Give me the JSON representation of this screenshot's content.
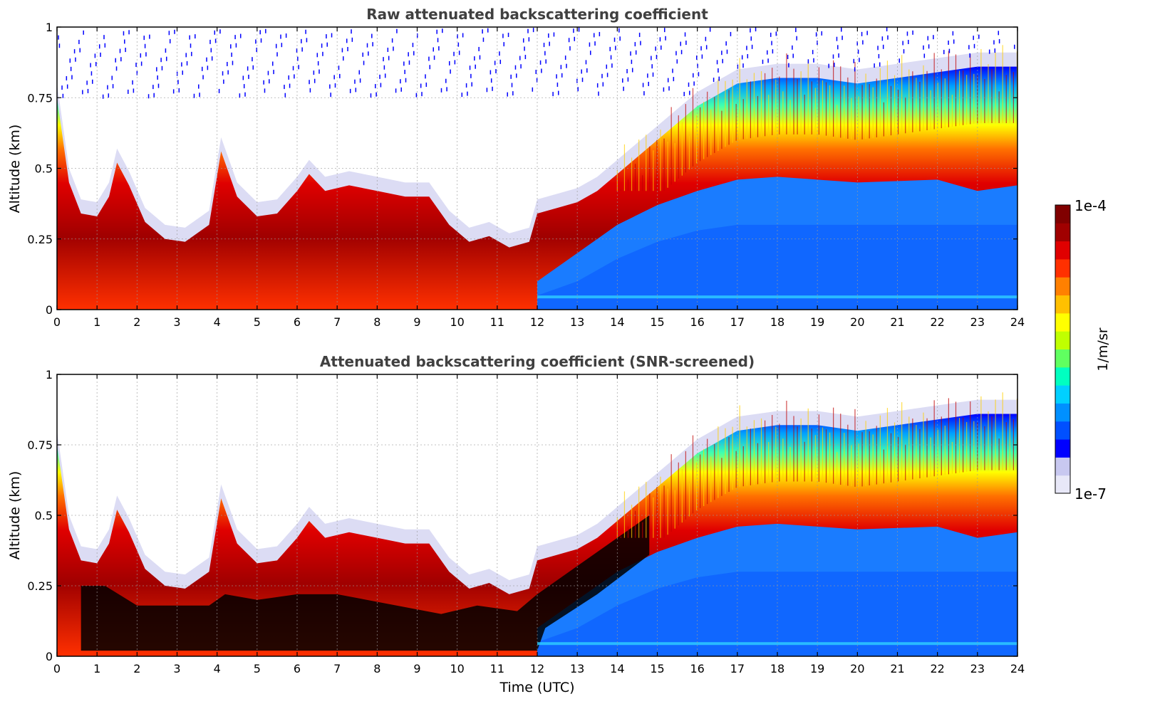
{
  "chart_data": [
    {
      "type": "heatmap",
      "title": "Raw attenuated backscattering coefficient",
      "xlabel": "",
      "ylabel": "Altitude (km)",
      "xlim": [
        0,
        24
      ],
      "ylim": [
        0,
        1
      ],
      "xticks": [
        "0",
        "1",
        "2",
        "3",
        "4",
        "5",
        "6",
        "7",
        "8",
        "9",
        "10",
        "11",
        "12",
        "13",
        "14",
        "15",
        "16",
        "17",
        "18",
        "19",
        "20",
        "21",
        "22",
        "23",
        "24"
      ],
      "yticks": [
        "0",
        "0.25",
        "0.5",
        "0.75",
        "1"
      ],
      "grid": true,
      "screened": false,
      "boundary_layer_top_km": [
        [
          0,
          0.75
        ],
        [
          0.3,
          0.45
        ],
        [
          0.6,
          0.34
        ],
        [
          1.0,
          0.33
        ],
        [
          1.3,
          0.4
        ],
        [
          1.5,
          0.52
        ],
        [
          1.8,
          0.44
        ],
        [
          2.2,
          0.31
        ],
        [
          2.7,
          0.25
        ],
        [
          3.2,
          0.24
        ],
        [
          3.8,
          0.3
        ],
        [
          4.1,
          0.56
        ],
        [
          4.5,
          0.4
        ],
        [
          5.0,
          0.33
        ],
        [
          5.5,
          0.34
        ],
        [
          6.0,
          0.42
        ],
        [
          6.3,
          0.48
        ],
        [
          6.7,
          0.42
        ],
        [
          7.3,
          0.44
        ],
        [
          8.0,
          0.42
        ],
        [
          8.7,
          0.4
        ],
        [
          9.3,
          0.4
        ],
        [
          9.8,
          0.3
        ],
        [
          10.3,
          0.24
        ],
        [
          10.8,
          0.26
        ],
        [
          11.3,
          0.22
        ],
        [
          11.8,
          0.24
        ],
        [
          12.0,
          0.34
        ],
        [
          12.5,
          0.36
        ],
        [
          13.0,
          0.38
        ],
        [
          13.5,
          0.42
        ],
        [
          14.0,
          0.48
        ],
        [
          14.5,
          0.54
        ],
        [
          15.0,
          0.6
        ],
        [
          15.5,
          0.66
        ],
        [
          16.0,
          0.72
        ],
        [
          16.5,
          0.76
        ],
        [
          17.0,
          0.8
        ],
        [
          18.0,
          0.82
        ],
        [
          19.0,
          0.82
        ],
        [
          20.0,
          0.8
        ],
        [
          21.0,
          0.82
        ],
        [
          22.0,
          0.84
        ],
        [
          23.0,
          0.86
        ],
        [
          24.0,
          0.86
        ]
      ]
    },
    {
      "type": "heatmap",
      "title": "Attenuated backscattering coefficient (SNR-screened)",
      "xlabel": "Time (UTC)",
      "ylabel": "Altitude (km)",
      "xlim": [
        0,
        24
      ],
      "ylim": [
        0,
        1
      ],
      "xticks": [
        "0",
        "1",
        "2",
        "3",
        "4",
        "5",
        "6",
        "7",
        "8",
        "9",
        "10",
        "11",
        "12",
        "13",
        "14",
        "15",
        "16",
        "17",
        "18",
        "19",
        "20",
        "21",
        "22",
        "23",
        "24"
      ],
      "yticks": [
        "0",
        "0.25",
        "0.5",
        "0.75",
        "1"
      ],
      "grid": true,
      "screened": true,
      "boundary_layer_top_km": [
        [
          0,
          0.75
        ],
        [
          0.3,
          0.45
        ],
        [
          0.6,
          0.34
        ],
        [
          1.0,
          0.33
        ],
        [
          1.3,
          0.4
        ],
        [
          1.5,
          0.52
        ],
        [
          1.8,
          0.44
        ],
        [
          2.2,
          0.31
        ],
        [
          2.7,
          0.25
        ],
        [
          3.2,
          0.24
        ],
        [
          3.8,
          0.3
        ],
        [
          4.1,
          0.56
        ],
        [
          4.5,
          0.4
        ],
        [
          5.0,
          0.33
        ],
        [
          5.5,
          0.34
        ],
        [
          6.0,
          0.42
        ],
        [
          6.3,
          0.48
        ],
        [
          6.7,
          0.42
        ],
        [
          7.3,
          0.44
        ],
        [
          8.0,
          0.42
        ],
        [
          8.7,
          0.4
        ],
        [
          9.3,
          0.4
        ],
        [
          9.8,
          0.3
        ],
        [
          10.3,
          0.24
        ],
        [
          10.8,
          0.26
        ],
        [
          11.3,
          0.22
        ],
        [
          11.8,
          0.24
        ],
        [
          12.0,
          0.34
        ],
        [
          12.5,
          0.36
        ],
        [
          13.0,
          0.38
        ],
        [
          13.5,
          0.42
        ],
        [
          14.0,
          0.48
        ],
        [
          14.5,
          0.54
        ],
        [
          15.0,
          0.6
        ],
        [
          15.5,
          0.66
        ],
        [
          16.0,
          0.72
        ],
        [
          16.5,
          0.76
        ],
        [
          17.0,
          0.8
        ],
        [
          18.0,
          0.82
        ],
        [
          19.0,
          0.82
        ],
        [
          20.0,
          0.8
        ],
        [
          21.0,
          0.82
        ],
        [
          22.0,
          0.84
        ],
        [
          23.0,
          0.86
        ],
        [
          24.0,
          0.86
        ]
      ]
    }
  ],
  "colorbar": {
    "label": "1/m/sr",
    "max_label": "1e-4",
    "min_label": "1e-7",
    "colors": [
      "#e8e8f8",
      "#c8c8f0",
      "#0000ff",
      "#0050ff",
      "#0090ff",
      "#00d0ff",
      "#00ffc0",
      "#60ff60",
      "#c0ff00",
      "#ffff00",
      "#ffc000",
      "#ff8000",
      "#ff3000",
      "#e00000",
      "#a00000",
      "#800000"
    ]
  }
}
